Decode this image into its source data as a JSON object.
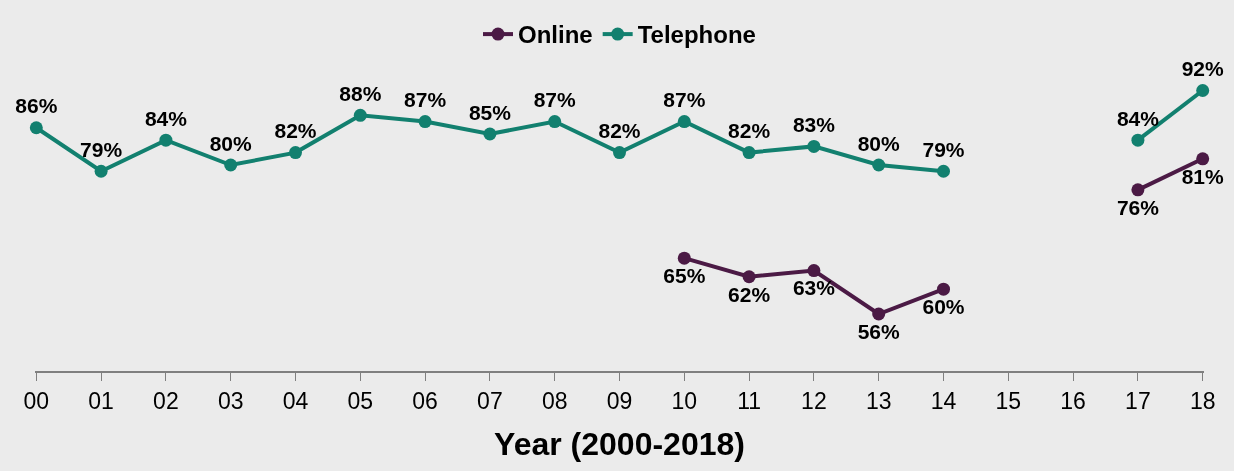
{
  "chart_data": {
    "type": "line",
    "xlabel": "Year (2000-2018)",
    "categories": [
      "00",
      "01",
      "02",
      "03",
      "04",
      "05",
      "06",
      "07",
      "08",
      "09",
      "10",
      "11",
      "12",
      "13",
      "14",
      "15",
      "16",
      "17",
      "18"
    ],
    "series": [
      {
        "name": "Online",
        "color": "#4b1a45",
        "values": [
          null,
          null,
          null,
          null,
          null,
          null,
          null,
          null,
          null,
          null,
          65,
          62,
          63,
          56,
          60,
          null,
          null,
          76,
          81
        ],
        "value_labels": [
          null,
          null,
          null,
          null,
          null,
          null,
          null,
          null,
          null,
          null,
          "65%",
          "62%",
          "63%",
          "56%",
          "60%",
          null,
          null,
          "76%",
          "81%"
        ]
      },
      {
        "name": "Telephone",
        "color": "#12806f",
        "values": [
          86,
          79,
          84,
          80,
          82,
          88,
          87,
          85,
          87,
          82,
          87,
          82,
          83,
          80,
          79,
          null,
          null,
          84,
          92
        ],
        "value_labels": [
          "86%",
          "79%",
          "84%",
          "80%",
          "82%",
          "88%",
          "87%",
          "85%",
          "87%",
          "82%",
          "87%",
          "82%",
          "83%",
          "80%",
          "79%",
          null,
          null,
          "84%",
          "92%"
        ]
      }
    ],
    "legend": "top",
    "marker": "circle",
    "line_style": "solid",
    "grid": false
  }
}
